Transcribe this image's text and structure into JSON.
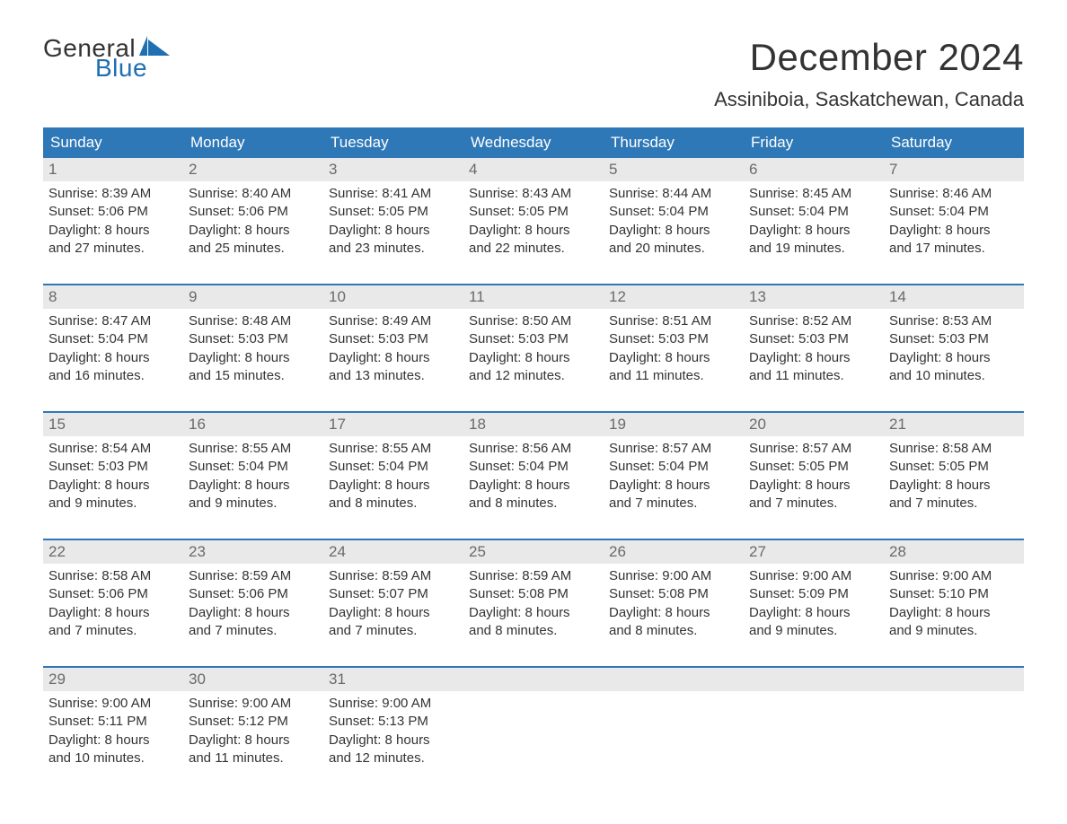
{
  "logo": {
    "text_general": "General",
    "text_blue": "Blue",
    "text_color_dark": "#333333",
    "text_color_blue": "#1f6fb2",
    "icon_color": "#1f6fb2"
  },
  "title": {
    "month": "December 2024",
    "location": "Assiniboia, Saskatchewan, Canada",
    "month_fontsize": 42,
    "location_fontsize": 22
  },
  "colors": {
    "header_bg": "#2f78b7",
    "header_text": "#ffffff",
    "daynum_bg": "#e9e9e9",
    "daynum_text": "#6a6a6a",
    "body_text": "#333333",
    "week_border": "#2f78b7",
    "page_bg": "#ffffff"
  },
  "day_headers": [
    "Sunday",
    "Monday",
    "Tuesday",
    "Wednesday",
    "Thursday",
    "Friday",
    "Saturday"
  ],
  "weeks": [
    [
      {
        "n": "1",
        "sunrise": "8:39 AM",
        "sunset": "5:06 PM",
        "daylight1": "Daylight: 8 hours",
        "daylight2": "and 27 minutes."
      },
      {
        "n": "2",
        "sunrise": "8:40 AM",
        "sunset": "5:06 PM",
        "daylight1": "Daylight: 8 hours",
        "daylight2": "and 25 minutes."
      },
      {
        "n": "3",
        "sunrise": "8:41 AM",
        "sunset": "5:05 PM",
        "daylight1": "Daylight: 8 hours",
        "daylight2": "and 23 minutes."
      },
      {
        "n": "4",
        "sunrise": "8:43 AM",
        "sunset": "5:05 PM",
        "daylight1": "Daylight: 8 hours",
        "daylight2": "and 22 minutes."
      },
      {
        "n": "5",
        "sunrise": "8:44 AM",
        "sunset": "5:04 PM",
        "daylight1": "Daylight: 8 hours",
        "daylight2": "and 20 minutes."
      },
      {
        "n": "6",
        "sunrise": "8:45 AM",
        "sunset": "5:04 PM",
        "daylight1": "Daylight: 8 hours",
        "daylight2": "and 19 minutes."
      },
      {
        "n": "7",
        "sunrise": "8:46 AM",
        "sunset": "5:04 PM",
        "daylight1": "Daylight: 8 hours",
        "daylight2": "and 17 minutes."
      }
    ],
    [
      {
        "n": "8",
        "sunrise": "8:47 AM",
        "sunset": "5:04 PM",
        "daylight1": "Daylight: 8 hours",
        "daylight2": "and 16 minutes."
      },
      {
        "n": "9",
        "sunrise": "8:48 AM",
        "sunset": "5:03 PM",
        "daylight1": "Daylight: 8 hours",
        "daylight2": "and 15 minutes."
      },
      {
        "n": "10",
        "sunrise": "8:49 AM",
        "sunset": "5:03 PM",
        "daylight1": "Daylight: 8 hours",
        "daylight2": "and 13 minutes."
      },
      {
        "n": "11",
        "sunrise": "8:50 AM",
        "sunset": "5:03 PM",
        "daylight1": "Daylight: 8 hours",
        "daylight2": "and 12 minutes."
      },
      {
        "n": "12",
        "sunrise": "8:51 AM",
        "sunset": "5:03 PM",
        "daylight1": "Daylight: 8 hours",
        "daylight2": "and 11 minutes."
      },
      {
        "n": "13",
        "sunrise": "8:52 AM",
        "sunset": "5:03 PM",
        "daylight1": "Daylight: 8 hours",
        "daylight2": "and 11 minutes."
      },
      {
        "n": "14",
        "sunrise": "8:53 AM",
        "sunset": "5:03 PM",
        "daylight1": "Daylight: 8 hours",
        "daylight2": "and 10 minutes."
      }
    ],
    [
      {
        "n": "15",
        "sunrise": "8:54 AM",
        "sunset": "5:03 PM",
        "daylight1": "Daylight: 8 hours",
        "daylight2": "and 9 minutes."
      },
      {
        "n": "16",
        "sunrise": "8:55 AM",
        "sunset": "5:04 PM",
        "daylight1": "Daylight: 8 hours",
        "daylight2": "and 9 minutes."
      },
      {
        "n": "17",
        "sunrise": "8:55 AM",
        "sunset": "5:04 PM",
        "daylight1": "Daylight: 8 hours",
        "daylight2": "and 8 minutes."
      },
      {
        "n": "18",
        "sunrise": "8:56 AM",
        "sunset": "5:04 PM",
        "daylight1": "Daylight: 8 hours",
        "daylight2": "and 8 minutes."
      },
      {
        "n": "19",
        "sunrise": "8:57 AM",
        "sunset": "5:04 PM",
        "daylight1": "Daylight: 8 hours",
        "daylight2": "and 7 minutes."
      },
      {
        "n": "20",
        "sunrise": "8:57 AM",
        "sunset": "5:05 PM",
        "daylight1": "Daylight: 8 hours",
        "daylight2": "and 7 minutes."
      },
      {
        "n": "21",
        "sunrise": "8:58 AM",
        "sunset": "5:05 PM",
        "daylight1": "Daylight: 8 hours",
        "daylight2": "and 7 minutes."
      }
    ],
    [
      {
        "n": "22",
        "sunrise": "8:58 AM",
        "sunset": "5:06 PM",
        "daylight1": "Daylight: 8 hours",
        "daylight2": "and 7 minutes."
      },
      {
        "n": "23",
        "sunrise": "8:59 AM",
        "sunset": "5:06 PM",
        "daylight1": "Daylight: 8 hours",
        "daylight2": "and 7 minutes."
      },
      {
        "n": "24",
        "sunrise": "8:59 AM",
        "sunset": "5:07 PM",
        "daylight1": "Daylight: 8 hours",
        "daylight2": "and 7 minutes."
      },
      {
        "n": "25",
        "sunrise": "8:59 AM",
        "sunset": "5:08 PM",
        "daylight1": "Daylight: 8 hours",
        "daylight2": "and 8 minutes."
      },
      {
        "n": "26",
        "sunrise": "9:00 AM",
        "sunset": "5:08 PM",
        "daylight1": "Daylight: 8 hours",
        "daylight2": "and 8 minutes."
      },
      {
        "n": "27",
        "sunrise": "9:00 AM",
        "sunset": "5:09 PM",
        "daylight1": "Daylight: 8 hours",
        "daylight2": "and 9 minutes."
      },
      {
        "n": "28",
        "sunrise": "9:00 AM",
        "sunset": "5:10 PM",
        "daylight1": "Daylight: 8 hours",
        "daylight2": "and 9 minutes."
      }
    ],
    [
      {
        "n": "29",
        "sunrise": "9:00 AM",
        "sunset": "5:11 PM",
        "daylight1": "Daylight: 8 hours",
        "daylight2": "and 10 minutes."
      },
      {
        "n": "30",
        "sunrise": "9:00 AM",
        "sunset": "5:12 PM",
        "daylight1": "Daylight: 8 hours",
        "daylight2": "and 11 minutes."
      },
      {
        "n": "31",
        "sunrise": "9:00 AM",
        "sunset": "5:13 PM",
        "daylight1": "Daylight: 8 hours",
        "daylight2": "and 12 minutes."
      },
      null,
      null,
      null,
      null
    ]
  ],
  "labels": {
    "sunrise_prefix": "Sunrise: ",
    "sunset_prefix": "Sunset: "
  }
}
